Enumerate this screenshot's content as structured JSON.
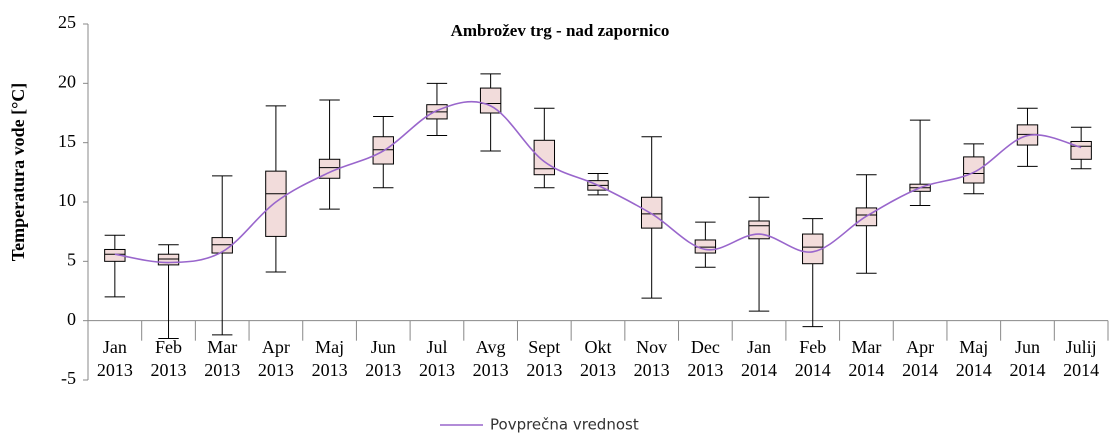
{
  "chart_data": {
    "type": "box",
    "title": "Ambrožev  trg - nad zapornico",
    "y_label": "Temperatura  vode [°C]",
    "categories": [
      [
        "Jan",
        "2013"
      ],
      [
        "Feb",
        "2013"
      ],
      [
        "Mar",
        "2013"
      ],
      [
        "Apr",
        "2013"
      ],
      [
        "Maj",
        "2013"
      ],
      [
        "Jun",
        "2013"
      ],
      [
        "Jul",
        "2013"
      ],
      [
        "Avg",
        "2013"
      ],
      [
        "Sept",
        "2013"
      ],
      [
        "Okt",
        "2013"
      ],
      [
        "Nov",
        "2013"
      ],
      [
        "Dec",
        "2013"
      ],
      [
        "Jan",
        "2014"
      ],
      [
        "Feb",
        "2014"
      ],
      [
        "Mar",
        "2014"
      ],
      [
        "Apr",
        "2014"
      ],
      [
        "Maj",
        "2014"
      ],
      [
        "Jun",
        "2014"
      ],
      [
        "Julij",
        "2014"
      ]
    ],
    "stats": {
      "min": [
        2.0,
        -1.5,
        -1.2,
        4.1,
        9.4,
        11.2,
        15.6,
        14.3,
        11.2,
        10.6,
        1.9,
        4.5,
        0.8,
        -0.5,
        4.0,
        9.7,
        10.7,
        13.0,
        12.8
      ],
      "q1": [
        5.0,
        4.7,
        5.7,
        7.1,
        12.0,
        13.2,
        17.0,
        17.5,
        12.3,
        11.0,
        7.8,
        5.7,
        6.9,
        4.8,
        8.0,
        10.9,
        11.6,
        14.8,
        13.6
      ],
      "median": [
        5.6,
        5.2,
        6.4,
        10.7,
        12.9,
        14.4,
        17.6,
        18.3,
        12.8,
        11.4,
        9.0,
        6.2,
        8.0,
        6.2,
        8.9,
        11.2,
        12.4,
        15.7,
        14.7
      ],
      "q3": [
        6.0,
        5.6,
        7.0,
        12.6,
        13.6,
        15.5,
        18.2,
        19.6,
        15.2,
        11.8,
        10.4,
        6.8,
        8.4,
        7.3,
        9.5,
        11.5,
        13.8,
        16.5,
        15.1
      ],
      "max": [
        7.2,
        6.4,
        12.2,
        18.1,
        18.6,
        17.2,
        20.0,
        20.8,
        17.9,
        12.4,
        15.5,
        8.3,
        10.4,
        8.6,
        12.3,
        16.9,
        14.9,
        17.9,
        16.3
      ]
    },
    "box_color": "#f2dcdb",
    "series": [
      {
        "name": "Povprečna vrednost",
        "color": "#9966cc",
        "values": [
          5.6,
          4.9,
          5.8,
          10.0,
          12.5,
          14.3,
          17.7,
          18.1,
          13.4,
          11.4,
          9.0,
          6.0,
          7.3,
          5.8,
          8.8,
          11.2,
          12.5,
          15.6,
          14.6
        ]
      }
    ],
    "ylim": [
      -5,
      25
    ],
    "yticks": [
      -5,
      0,
      5,
      10,
      15,
      20,
      25
    ]
  }
}
